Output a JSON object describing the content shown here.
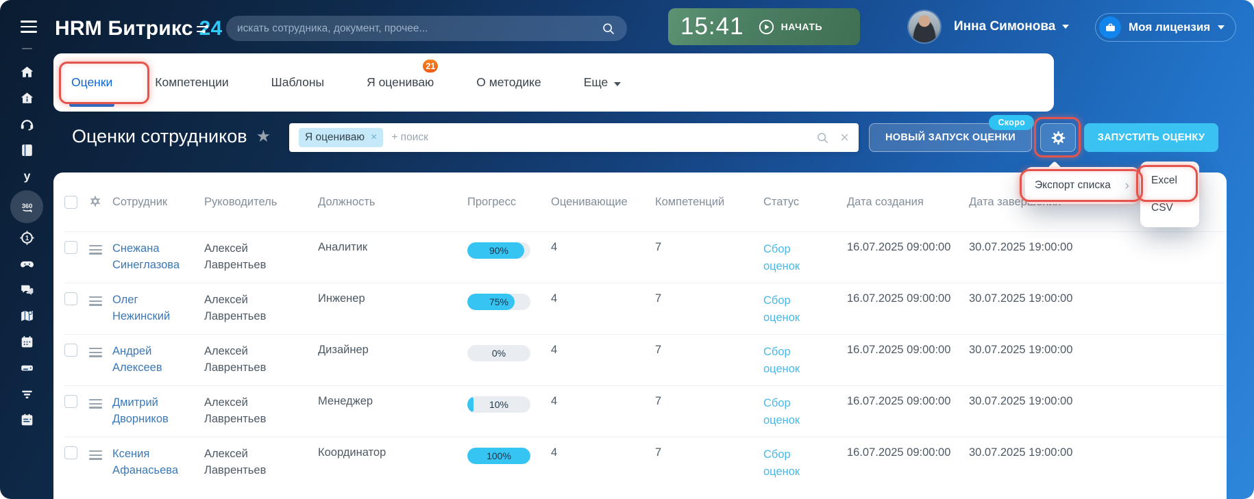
{
  "topbar": {
    "brand": "HRM Битрикс",
    "brand_accent": "24",
    "search_placeholder": "искать сотрудника, документ, прочее...",
    "timer": {
      "time": "15:41",
      "action": "НАЧАТЬ"
    },
    "user_name": "Инна Симонова",
    "license_label": "Моя лицензия"
  },
  "sidebar": {
    "icons": [
      "home",
      "company",
      "support",
      "knowledge-base",
      "y-app",
      "evaluation-360",
      "goals",
      "gamification",
      "chats",
      "map",
      "calendar",
      "drive",
      "filter",
      "planner"
    ],
    "active_icon": "evaluation-360"
  },
  "tabs": [
    {
      "label": "Оценки",
      "active": true,
      "annotated": true
    },
    {
      "label": "Компетенции"
    },
    {
      "label": "Шаблоны"
    },
    {
      "label": "Я оцениваю",
      "badge": "21"
    },
    {
      "label": "О методике"
    },
    {
      "label": "Еще",
      "chevron": true
    }
  ],
  "toolbar": {
    "page_title": "Оценки сотрудников",
    "filter_chip": "Я оцениваю",
    "filter_placeholder": "+ поиск",
    "new_request_label": "НОВЫЙ ЗАПУСК ОЦЕНКИ",
    "soon_badge": "Скоро",
    "start_label": "ЗАПУСТИТЬ ОЦЕНКУ"
  },
  "export_menu": {
    "label": "Экспорт списка",
    "options": [
      "Excel",
      "CSV"
    ]
  },
  "table": {
    "headers": [
      "Сотрудник",
      "Руководитель",
      "Должность",
      "Прогресс",
      "Оценивающие",
      "Компетенций",
      "Статус",
      "Дата создания",
      "Дата завершения"
    ],
    "rows": [
      {
        "employee": "Снежана Синеглазова",
        "manager": "Алексей Лаврентьев",
        "position": "Аналитик",
        "progress": 90,
        "evaluators": "4",
        "competencies": "7",
        "status": "Сбор оценок",
        "created": "16.07.2025 09:00:00",
        "finished": "30.07.2025 19:00:00"
      },
      {
        "employee": "Олег Нежинский",
        "manager": "Алексей Лаврентьев",
        "position": "Инженер",
        "progress": 75,
        "evaluators": "4",
        "competencies": "7",
        "status": "Сбор оценок",
        "created": "16.07.2025 09:00:00",
        "finished": "30.07.2025 19:00:00"
      },
      {
        "employee": "Андрей Алексеев",
        "manager": "Алексей Лаврентьев",
        "position": "Дизайнер",
        "progress": 0,
        "evaluators": "4",
        "competencies": "7",
        "status": "Сбор оценок",
        "created": "16.07.2025 09:00:00",
        "finished": "30.07.2025 19:00:00"
      },
      {
        "employee": "Дмитрий Дворников",
        "manager": "Алексей Лаврентьев",
        "position": "Менеджер",
        "progress": 10,
        "evaluators": "4",
        "competencies": "7",
        "status": "Сбор оценок",
        "created": "16.07.2025 09:00:00",
        "finished": "30.07.2025 19:00:00"
      },
      {
        "employee": "Ксения Афанасьева",
        "manager": "Алексей Лаврентьев",
        "position": "Координатор",
        "progress": 100,
        "evaluators": "4",
        "competencies": "7",
        "status": "Сбор оценок",
        "created": "16.07.2025 09:00:00",
        "finished": "30.07.2025 19:00:00"
      }
    ]
  },
  "colors": {
    "accent_cyan": "#36c4f3",
    "annotation_red": "#e4544c",
    "timer_green": "#4a7d61",
    "badge_orange": "#f2661a",
    "link_blue": "#3b78b5",
    "status_blue": "#47b9ea",
    "active_tab_blue": "#0b66d0",
    "progress_track": "#e9edf1"
  }
}
